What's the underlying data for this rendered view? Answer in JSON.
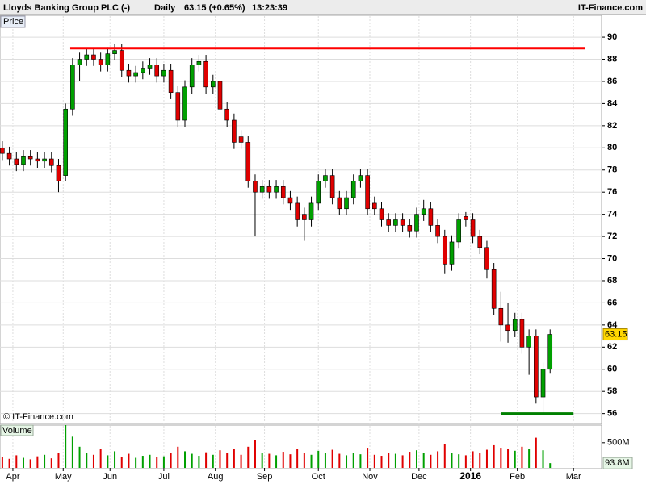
{
  "header": {
    "title": "Lloyds Banking Group PLC (-)",
    "period": "Daily",
    "quote": "63.15 (+0.65%)",
    "time": "13:23:39",
    "site": "IT-Finance.com"
  },
  "chart_data": {
    "type": "candlestick",
    "price_label": "Price",
    "volume_label": "Volume",
    "copyright": "© IT-Finance.com",
    "up_color": "#00a000",
    "down_color": "#e00000",
    "x": [
      1,
      4,
      7,
      10,
      13,
      16,
      19,
      22,
      25,
      28,
      31,
      34,
      37,
      40,
      43,
      46,
      49,
      52,
      55,
      58,
      61,
      64,
      67,
      70,
      73,
      76,
      79,
      82,
      85,
      88,
      91,
      94,
      97,
      100,
      103,
      106,
      109,
      112,
      115,
      118,
      121,
      124,
      127,
      130,
      133,
      136,
      139,
      142,
      145,
      148,
      151,
      154,
      157,
      160,
      163,
      166,
      169,
      172,
      175,
      178,
      181,
      184,
      187,
      190,
      193,
      196,
      199,
      202,
      205,
      208,
      211,
      214,
      217,
      220,
      223,
      226,
      229,
      232,
      235
    ],
    "open": [
      80,
      79.5,
      79,
      78.5,
      79.2,
      79,
      78.8,
      79,
      78.4,
      77.5,
      83.5,
      87.5,
      88,
      88.4,
      88,
      87.5,
      88.5,
      88.8,
      87,
      86.5,
      86.8,
      87.2,
      87.5,
      86.5,
      87,
      85,
      82.5,
      85.5,
      87.5,
      87.8,
      85.5,
      86,
      83.5,
      82.5,
      81,
      80.5,
      77,
      76,
      76.5,
      76,
      76.5,
      75.5,
      75,
      74,
      73.5,
      75,
      77,
      77.5,
      75.5,
      74.5,
      75.5,
      77,
      77.5,
      75,
      74.5,
      73.5,
      73,
      73.5,
      73,
      72.5,
      74,
      74.5,
      73,
      72,
      69.5,
      71.5,
      73.8,
      73.5,
      72,
      71,
      69,
      65.5,
      64,
      63.5,
      64.5,
      62,
      63,
      57.5,
      60
    ],
    "high": [
      80.6,
      80.1,
      79.6,
      79.8,
      79.8,
      79.6,
      79.6,
      79.6,
      79,
      84,
      88.1,
      88.6,
      89,
      89,
      88.6,
      89.1,
      89.4,
      89.4,
      87.6,
      87.4,
      87.8,
      88.1,
      88.1,
      87.6,
      87.6,
      85.6,
      86.1,
      88.1,
      88.4,
      88.4,
      86.6,
      86.6,
      84.1,
      83.1,
      81.6,
      81.1,
      77.6,
      77.1,
      77.1,
      77.1,
      77.1,
      76.1,
      75.6,
      74.6,
      75.6,
      77.6,
      78.1,
      78.1,
      76.1,
      76.1,
      77.6,
      78.1,
      78.1,
      75.6,
      75.1,
      74.1,
      74.1,
      74.1,
      73.6,
      74.6,
      75.3,
      75.1,
      73.6,
      72.6,
      72.1,
      74.1,
      74.2,
      74.1,
      72.6,
      71.6,
      69.6,
      67,
      66,
      65.1,
      65.1,
      63.6,
      63.6,
      60.6,
      63.6
    ],
    "low": [
      78.9,
      78.4,
      77.9,
      77.9,
      78.4,
      78.2,
      78.2,
      77.8,
      76,
      77,
      82.9,
      86,
      87.4,
      87.4,
      86.9,
      86.9,
      87.9,
      86.4,
      85.9,
      85.9,
      86.2,
      86.6,
      85.9,
      85.9,
      84.4,
      81.9,
      81.9,
      84.9,
      86.9,
      84.9,
      84.9,
      82.9,
      81.9,
      79.9,
      79.9,
      76.4,
      72,
      75.4,
      75.4,
      75.4,
      74.9,
      74.4,
      72.9,
      71.6,
      72.9,
      74.4,
      76.4,
      74.9,
      73.9,
      73.9,
      74.9,
      76.4,
      73.9,
      73.9,
      72.9,
      72.4,
      72.4,
      72.4,
      71.9,
      71.9,
      73.4,
      72.4,
      71.4,
      68.6,
      68.9,
      70.9,
      72.9,
      71.4,
      70.4,
      68.2,
      64.9,
      62.5,
      62.4,
      62.9,
      61.4,
      59.5,
      56.9,
      56,
      59.6
    ],
    "close": [
      79.5,
      79,
      78.5,
      79.2,
      79,
      78.8,
      79,
      78.4,
      77,
      83.5,
      87.5,
      88,
      88.4,
      88,
      87.5,
      88.5,
      88.8,
      87,
      86.5,
      86.8,
      87.2,
      87.5,
      86.5,
      87,
      85,
      82.5,
      85.5,
      87.5,
      87.8,
      85.5,
      86,
      83.5,
      82.5,
      80.5,
      80.5,
      77,
      76,
      76.5,
      76,
      76.5,
      75.5,
      75,
      73.5,
      73.5,
      75,
      77,
      77.5,
      75.5,
      74.5,
      75.5,
      77,
      77.5,
      74.5,
      74.5,
      73.5,
      73,
      73.5,
      73,
      72.5,
      74,
      74.5,
      73,
      72,
      69.5,
      71.5,
      73.5,
      73.5,
      72,
      71,
      69,
      65.5,
      64,
      63.5,
      64.5,
      62,
      63,
      57.5,
      60,
      63.15
    ],
    "volume": [
      220,
      180,
      250,
      200,
      170,
      230,
      260,
      190,
      300,
      850,
      620,
      420,
      300,
      260,
      380,
      250,
      330,
      220,
      280,
      200,
      240,
      260,
      210,
      230,
      300,
      420,
      330,
      280,
      240,
      310,
      260,
      350,
      300,
      380,
      260,
      420,
      560,
      300,
      280,
      250,
      320,
      270,
      380,
      300,
      260,
      340,
      290,
      360,
      280,
      250,
      300,
      270,
      400,
      260,
      240,
      300,
      280,
      250,
      320,
      350,
      290,
      260,
      330,
      480,
      300,
      270,
      250,
      330,
      300,
      360,
      450,
      400,
      380,
      340,
      420,
      380,
      600,
      350,
      93.8
    ],
    "volume_last_label": "93.8M",
    "xlim": [
      0,
      257
    ],
    "xticks": [
      {
        "value": 5.5,
        "label": "Apr"
      },
      {
        "value": 27,
        "label": "May"
      },
      {
        "value": 47,
        "label": "Jun"
      },
      {
        "value": 70,
        "label": "Jul"
      },
      {
        "value": 92,
        "label": "Aug"
      },
      {
        "value": 113,
        "label": "Sep"
      },
      {
        "value": 136,
        "label": "Oct"
      },
      {
        "value": 158,
        "label": "Nov"
      },
      {
        "value": 179,
        "label": "Dec"
      },
      {
        "value": 201,
        "label": "2016"
      },
      {
        "value": 221,
        "label": "Feb"
      },
      {
        "value": 245,
        "label": "Mar"
      }
    ],
    "ylim": [
      55.1,
      91.9
    ],
    "yticks": [
      56,
      58,
      60,
      62,
      64,
      66,
      68,
      70,
      72,
      74,
      76,
      78,
      80,
      82,
      84,
      86,
      88,
      90
    ],
    "vlim": [
      0,
      850
    ],
    "vticks": [
      {
        "value": 500,
        "label": "500M"
      }
    ],
    "levels": [
      {
        "value": 89,
        "x": [
          30,
          250
        ],
        "color": "#ff0000"
      },
      {
        "value": 56,
        "x": [
          214,
          245
        ],
        "color": "#008000"
      }
    ],
    "grid": true
  }
}
